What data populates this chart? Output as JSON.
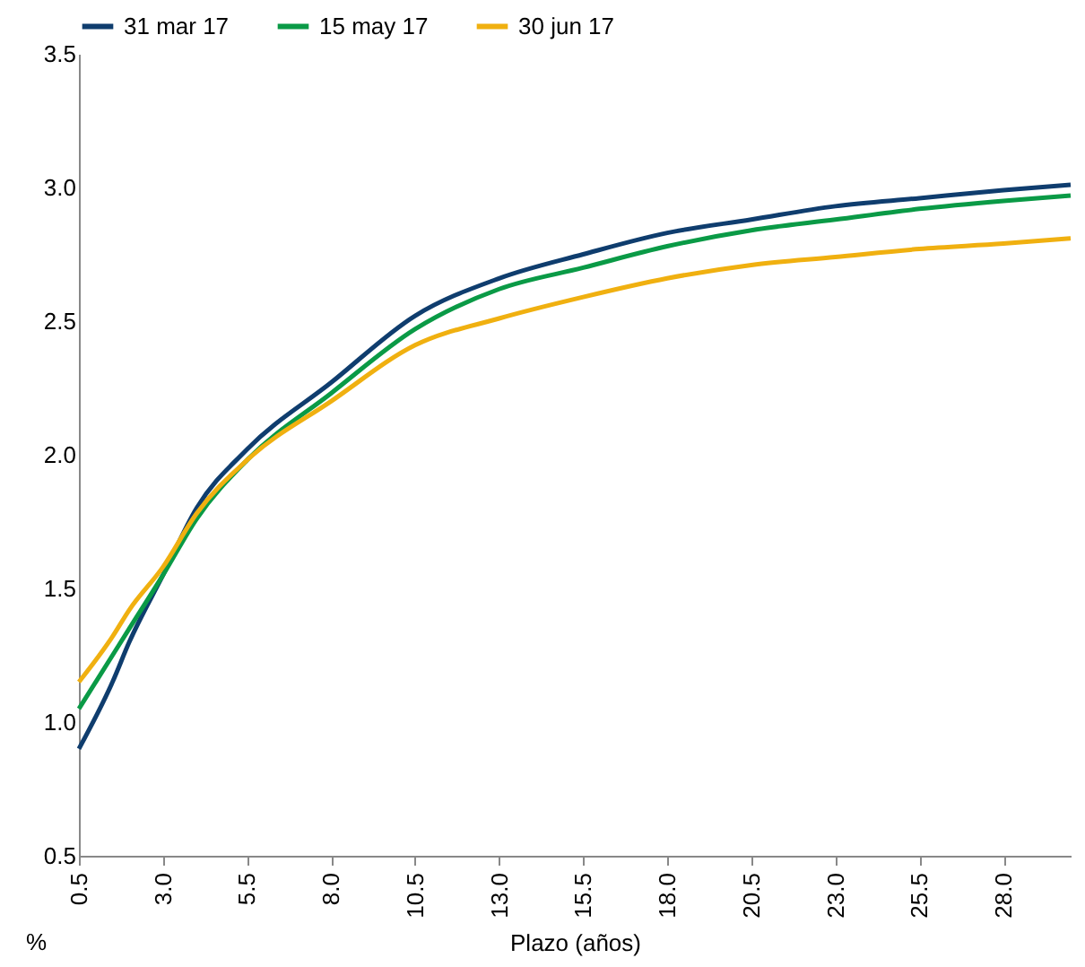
{
  "chart_data": {
    "type": "line",
    "xlabel": "Plazo (años)",
    "ylabel": "%",
    "legend": "top",
    "grid": false,
    "xlim": [
      0.5,
      30
    ],
    "ylim": [
      0.5,
      3.5
    ],
    "xticks": [
      0.5,
      {
        "value": 3,
        "label": "3.0"
      },
      5.5,
      {
        "value": 8,
        "label": "8.0"
      },
      10.5,
      {
        "value": 13,
        "label": "13.0"
      },
      15.5,
      {
        "value": 18,
        "label": "18.0"
      },
      20.5,
      {
        "value": 23,
        "label": "23.0"
      },
      25.5,
      {
        "value": 28,
        "label": "28.0"
      }
    ],
    "yticks": [
      0.5,
      {
        "value": 1,
        "label": "1.0"
      },
      1.5,
      {
        "value": 2,
        "label": "2.0"
      },
      2.5,
      {
        "value": 3,
        "label": "3.0"
      },
      3.5
    ],
    "x": [
      0.5,
      1.5,
      2,
      3,
      4,
      5.5,
      8,
      10.5,
      13,
      15.5,
      18,
      20.5,
      23,
      25.5,
      28,
      30
    ],
    "series": [
      {
        "name": "31 mar 17",
        "color": "#0f3d6e",
        "values": [
          0.9,
          1.15,
          1.3,
          1.55,
          1.8,
          2.02,
          2.27,
          2.52,
          2.66,
          2.75,
          2.83,
          2.88,
          2.93,
          2.96,
          2.99,
          3.01
        ]
      },
      {
        "name": "15 may 17",
        "color": "#0a9a46",
        "values": [
          1.05,
          1.25,
          1.35,
          1.55,
          1.76,
          1.98,
          2.23,
          2.47,
          2.62,
          2.7,
          2.78,
          2.84,
          2.88,
          2.92,
          2.95,
          2.97
        ]
      },
      {
        "name": "30 jun 17",
        "color": "#f0b010",
        "values": [
          1.15,
          1.32,
          1.42,
          1.58,
          1.78,
          1.98,
          2.2,
          2.41,
          2.51,
          2.59,
          2.66,
          2.71,
          2.74,
          2.77,
          2.79,
          2.81
        ]
      }
    ]
  }
}
